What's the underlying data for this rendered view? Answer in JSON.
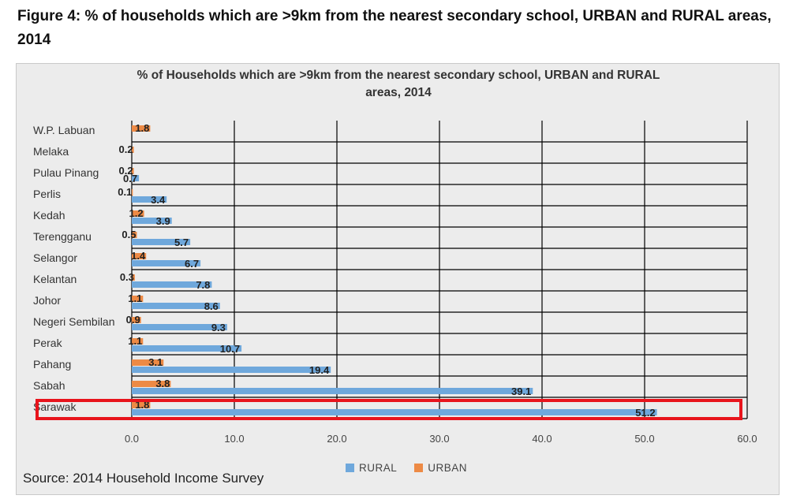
{
  "figure_title": "Figure 4: % of households which are >9km from the nearest secondary school, URBAN and RURAL areas, 2014",
  "source": "Source: 2014 Household Income Survey",
  "colors": {
    "rural": "#6fa8dc",
    "urban": "#ed8a45",
    "highlight": "#e8141c",
    "grid": "#000000",
    "panel": "#ececec"
  },
  "chart_data": {
    "type": "bar",
    "orientation": "horizontal",
    "title": "% of Households which are >9km from the nearest secondary school, URBAN and RURAL areas, 2014",
    "title_lines": [
      "% of Households which are >9km from the nearest secondary school, URBAN and RURAL",
      "areas, 2014"
    ],
    "categories": [
      "W.P. Labuan",
      "Melaka",
      "Pulau Pinang",
      "Perlis",
      "Kedah",
      "Terengganu",
      "Selangor",
      "Kelantan",
      "Johor",
      "Negeri Sembilan",
      "Perak",
      "Pahang",
      "Sabah",
      "Sarawak"
    ],
    "series": [
      {
        "name": "RURAL",
        "values": [
          null,
          null,
          0.7,
          3.4,
          3.9,
          5.7,
          6.7,
          7.8,
          8.6,
          9.3,
          10.7,
          19.4,
          39.1,
          51.2
        ]
      },
      {
        "name": "URBAN",
        "values": [
          1.8,
          0.2,
          0.2,
          0.1,
          1.2,
          0.5,
          1.4,
          0.3,
          1.1,
          0.9,
          1.1,
          3.1,
          3.8,
          1.8
        ]
      }
    ],
    "xlim": [
      0,
      60
    ],
    "xticks": [
      "0.0",
      "10.0",
      "20.0",
      "30.0",
      "40.0",
      "50.0",
      "60.0"
    ],
    "grid": true,
    "legend_position": "bottom",
    "highlighted_category": "Sarawak"
  }
}
